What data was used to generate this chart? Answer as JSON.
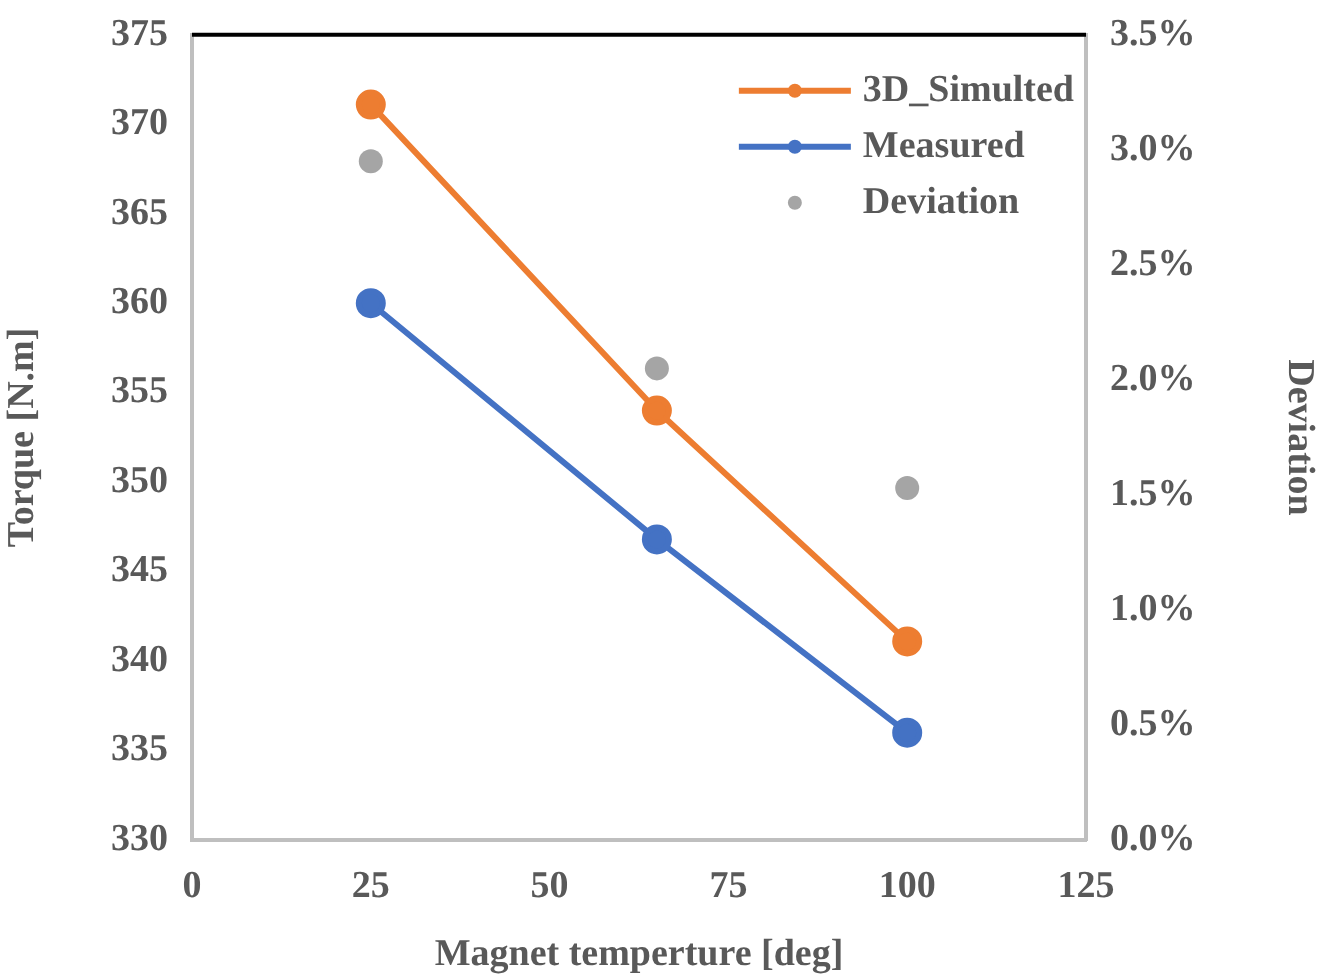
{
  "chart_data": {
    "type": "line",
    "xlabel": "Magnet temperture [deg]",
    "ylabel": "Torque [N.m]",
    "y2label": "Deviation",
    "x": [
      25,
      65,
      100
    ],
    "series": [
      {
        "name": "3D_Simulted",
        "color": "#ed7d31",
        "values": [
          371.1,
          354.0,
          341.1
        ]
      },
      {
        "name": "Measured",
        "color": "#4472c4",
        "values": [
          360.0,
          346.8,
          336.0
        ]
      },
      {
        "name": "Deviation",
        "type": "scatter",
        "axis": "y2",
        "color": "#a5a5a5",
        "values": [
          2.95,
          2.05,
          1.53
        ]
      }
    ],
    "xlim": [
      0,
      125
    ],
    "xticks": [
      0,
      25,
      50,
      75,
      100,
      125
    ],
    "ylim": [
      330,
      375
    ],
    "yticks": [
      330,
      335,
      340,
      345,
      350,
      355,
      360,
      365,
      370,
      375
    ],
    "y2lim": [
      0,
      3.5
    ],
    "y2ticks": [
      {
        "value": 0,
        "label": "0.0%"
      },
      {
        "value": 0.5,
        "label": "0.5%"
      },
      {
        "value": 1,
        "label": "1.0%"
      },
      {
        "value": 1.5,
        "label": "1.5%"
      },
      {
        "value": 2,
        "label": "2.0%"
      },
      {
        "value": 2.5,
        "label": "2.5%"
      },
      {
        "value": 3,
        "label": "3.0%"
      },
      {
        "value": 3.5,
        "label": "3.5%"
      }
    ],
    "grid": false,
    "legend": "top right",
    "marker": "circle",
    "line_style": "solid"
  }
}
